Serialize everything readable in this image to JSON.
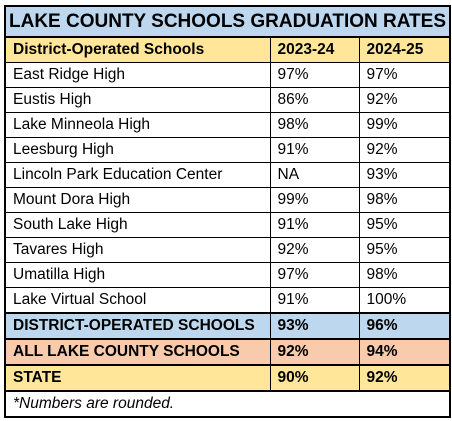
{
  "title": "LAKE COUNTY SCHOOLS GRADUATION RATES",
  "columns": [
    "District-Operated Schools",
    "2023-24",
    "2024-25"
  ],
  "rows": [
    {
      "school": "East Ridge High",
      "y2324": "97%",
      "y2425": "97%"
    },
    {
      "school": "Eustis High",
      "y2324": "86%",
      "y2425": "92%"
    },
    {
      "school": "Lake Minneola High",
      "y2324": "98%",
      "y2425": "99%"
    },
    {
      "school": "Leesburg High",
      "y2324": "91%",
      "y2425": "92%"
    },
    {
      "school": "Lincoln Park Education Center",
      "y2324": "NA",
      "y2425": "93%"
    },
    {
      "school": "Mount Dora High",
      "y2324": "99%",
      "y2425": "98%"
    },
    {
      "school": "South Lake High",
      "y2324": "91%",
      "y2425": "95%"
    },
    {
      "school": "Tavares High",
      "y2324": "92%",
      "y2425": "95%"
    },
    {
      "school": "Umatilla High",
      "y2324": "97%",
      "y2425": "98%"
    },
    {
      "school": "Lake Virtual School",
      "y2324": "91%",
      "y2425": "100%"
    }
  ],
  "summary": {
    "district": {
      "label": "DISTRICT-OPERATED SCHOOLS",
      "y2324": "93%",
      "y2425": "96%"
    },
    "all": {
      "label": "ALL LAKE COUNTY SCHOOLS",
      "y2324": "92%",
      "y2425": "94%"
    },
    "state": {
      "label": "STATE",
      "y2324": "90%",
      "y2425": "92%"
    }
  },
  "footnote": "*Numbers are rounded.",
  "colors": {
    "title_bg": "#bdd7ee",
    "header_bg": "#ffe699",
    "district_bg": "#bdd7ee",
    "all_bg": "#f8cbad",
    "state_bg": "#ffe699"
  }
}
